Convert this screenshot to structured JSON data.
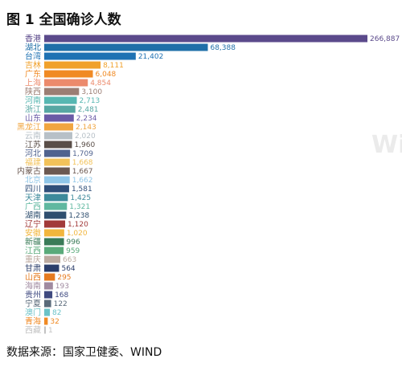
{
  "figure": {
    "title": "图 1 全国确诊人数",
    "source": "数据来源：国家卫健委、WIND",
    "watermark": "Win"
  },
  "chart_data": {
    "type": "bar",
    "orientation": "horizontal",
    "title": "",
    "xlabel": "",
    "ylabel": "",
    "grid": false,
    "legend": "none",
    "categories": [
      "香港",
      "湖北",
      "台湾",
      "吉林",
      "广东",
      "上海",
      "陕西",
      "河南",
      "浙江",
      "山东",
      "黑龙江",
      "云南",
      "江苏",
      "河北",
      "福建",
      "内蒙古",
      "北京",
      "四川",
      "天津",
      "广西",
      "湖南",
      "辽宁",
      "安徽",
      "新疆",
      "江西",
      "重庆",
      "甘肃",
      "山西",
      "海南",
      "贵州",
      "宁夏",
      "澳门",
      "青海",
      "西藏"
    ],
    "values": [
      266887,
      68388,
      21402,
      8111,
      6048,
      4854,
      3100,
      2713,
      2481,
      2234,
      2143,
      2020,
      1960,
      1709,
      1668,
      1667,
      1662,
      1581,
      1425,
      1321,
      1238,
      1120,
      1020,
      996,
      959,
      663,
      564,
      295,
      193,
      168,
      122,
      82,
      32,
      1
    ],
    "value_labels": [
      "266,887",
      "68,388",
      "21,402",
      "8,111",
      "6,048",
      "4,854",
      "3,100",
      "2,713",
      "2,481",
      "2,234",
      "2,143",
      "2,020",
      "1,960",
      "1,709",
      "1,668",
      "1,667",
      "1,662",
      "1,581",
      "1,425",
      "1,321",
      "1,238",
      "1,120",
      "1,020",
      "996",
      "959",
      "663",
      "564",
      "295",
      "193",
      "168",
      "122",
      "82",
      "32",
      "1"
    ],
    "colors": [
      "#5b4a8b",
      "#1f6fa8",
      "#1f72b3",
      "#f0a12b",
      "#f08a24",
      "#ec8a6c",
      "#9b7e74",
      "#57b7b2",
      "#57a7a3",
      "#6a5aa6",
      "#f0a540",
      "#b7c0c7",
      "#5a4e48",
      "#50638f",
      "#f2c25a",
      "#6b5850",
      "#8fc6e8",
      "#2f4f7a",
      "#3d8a9b",
      "#60b8a0",
      "#2f4f6f",
      "#a23a3a",
      "#f2b63d",
      "#3a7b58",
      "#5aaa7a",
      "#bcaaa0",
      "#2a3d6a",
      "#e57a1f",
      "#a08aa0",
      "#3f4a80",
      "#5a6a7a",
      "#6bc3c8",
      "#f08a24",
      "#c2c2c2"
    ],
    "label_colors": [
      "#5b4a8b",
      "#1f6fa8",
      "#1f72b3",
      "#f0a12b",
      "#f08a24",
      "#ec8a6c",
      "#9b7e74",
      "#57b7b2",
      "#57a7a3",
      "#6a5aa6",
      "#f0a540",
      "#b7c0c7",
      "#5a4e48",
      "#50638f",
      "#f2c25a",
      "#6b5850",
      "#8fc6e8",
      "#2f4f7a",
      "#3d8a9b",
      "#60b8a0",
      "#2f4f6f",
      "#a23a3a",
      "#f2b63d",
      "#3a7b58",
      "#5aaa7a",
      "#bcaaa0",
      "#2a3d6a",
      "#e57a1f",
      "#a08aa0",
      "#3f4a80",
      "#5a6a7a",
      "#6bc3c8",
      "#f08a24",
      "#c2c2c2"
    ]
  }
}
